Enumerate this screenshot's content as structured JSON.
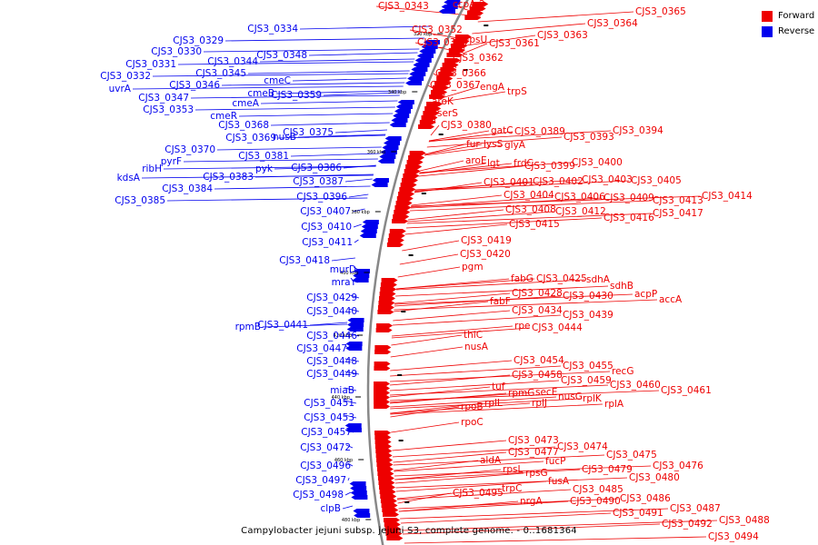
{
  "legend": {
    "items": [
      {
        "label": "Forward",
        "color": "#ee0000"
      },
      {
        "label": "Reverse",
        "color": "#0000ee"
      }
    ]
  },
  "caption": "Campylobacter jejuni subsp. jejuni S3, complete genome. - 0..1681364",
  "colors": {
    "forward": "#ee0000",
    "reverse": "#0000ee",
    "backbone": "#888888"
  },
  "scale_ticks": [
    "320 kbp",
    "340 kbp",
    "360 kbp",
    "380 kbp",
    "400 kbp",
    "420 kbp",
    "440 kbp",
    "460 kbp",
    "480 kbp"
  ],
  "forward_labels": [
    "CJS3_0343",
    "ccpA-2",
    "CJS3_0365",
    "CJS3_0364",
    "CJS3_0363",
    "CJS3_0352",
    "CJS3_0354",
    "rpsU",
    "CJS3_0361",
    "CJS3_0362",
    "CJS3_0366",
    "CJS3_0367",
    "engA",
    "trpS",
    "aroK",
    "serS",
    "CJS3_0380",
    "gatC",
    "CJS3_0389",
    "CJS3_0393",
    "CJS3_0394",
    "fur",
    "lysS",
    "glyA",
    "aroE",
    "lgt",
    "frdC",
    "CJS3_0399",
    "CJS3_0400",
    "CJS3_0401",
    "CJS3_0402",
    "CJS3_0403",
    "CJS3_0405",
    "CJS3_0404",
    "CJS3_0406",
    "CJS3_0409",
    "CJS3_0413",
    "CJS3_0414",
    "CJS3_0408",
    "CJS3_0412",
    "CJS3_0416",
    "CJS3_0417",
    "CJS3_0415",
    "CJS3_0419",
    "CJS3_0420",
    "pgm",
    "fabG",
    "CJS3_0425",
    "sdhA",
    "sdhB",
    "CJS3_0428",
    "CJS3_0430",
    "acpP",
    "accA",
    "fabF",
    "CJS3_0434",
    "CJS3_0439",
    "rpe",
    "CJS3_0444",
    "thiC",
    "nusA",
    "CJS3_0454",
    "CJS3_0455",
    "CJS3_0458",
    "CJS3_0459",
    "recG",
    "CJS3_0460",
    "CJS3_0461",
    "tuf",
    "rpmG",
    "secE",
    "nusG",
    "rplK",
    "rplA",
    "rplJ",
    "rplL",
    "rpoB",
    "rpoC",
    "CJS3_0473",
    "CJS3_0474",
    "CJS3_0477",
    "CJS3_0475",
    "aldA",
    "fucP",
    "CJS3_0476",
    "CJS3_0479",
    "rpsL",
    "rpsG",
    "CJS3_0480",
    "fusA",
    "CJS3_0485",
    "CJS3_0495",
    "trpC",
    "CJS3_0486",
    "nrgA",
    "CJS3_0490",
    "CJS3_0487",
    "CJS3_0491",
    "CJS3_0488",
    "CJS3_0492",
    "CJS3_0494"
  ],
  "reverse_labels": [
    "CJS3_0334",
    "CJS3_0329",
    "CJS3_0330",
    "CJS3_0331",
    "CJS3_0332",
    "uvrA",
    "CJS3_0344",
    "CJS3_0348",
    "CJS3_0345",
    "CJS3_0346",
    "cmeC",
    "CJS3_0347",
    "cmeB",
    "CJS3_0359",
    "CJS3_0353",
    "cmeA",
    "cmeR",
    "CJS3_0368",
    "CJS3_0369",
    "nusB",
    "CJS3_0375",
    "CJS3_0370",
    "pyrF",
    "ribH",
    "kdsA",
    "CJS3_0381",
    "CJS3_0386",
    "pyk",
    "CJS3_0383",
    "CJS3_0387",
    "CJS3_0384",
    "CJS3_0385",
    "CJS3_0396",
    "CJS3_0407",
    "CJS3_0410",
    "CJS3_0411",
    "CJS3_0418",
    "murD",
    "mraY",
    "CJS3_0429",
    "CJS3_0440",
    "rpmB",
    "CJS3_0441",
    "CJS3_0446",
    "CJS3_0447",
    "CJS3_0448",
    "CJS3_0449",
    "miaB",
    "CJS3_0451",
    "CJS3_0453",
    "CJS3_0457",
    "CJS3_0472",
    "CJS3_0496",
    "CJS3_0497",
    "CJS3_0498",
    "clpB"
  ]
}
